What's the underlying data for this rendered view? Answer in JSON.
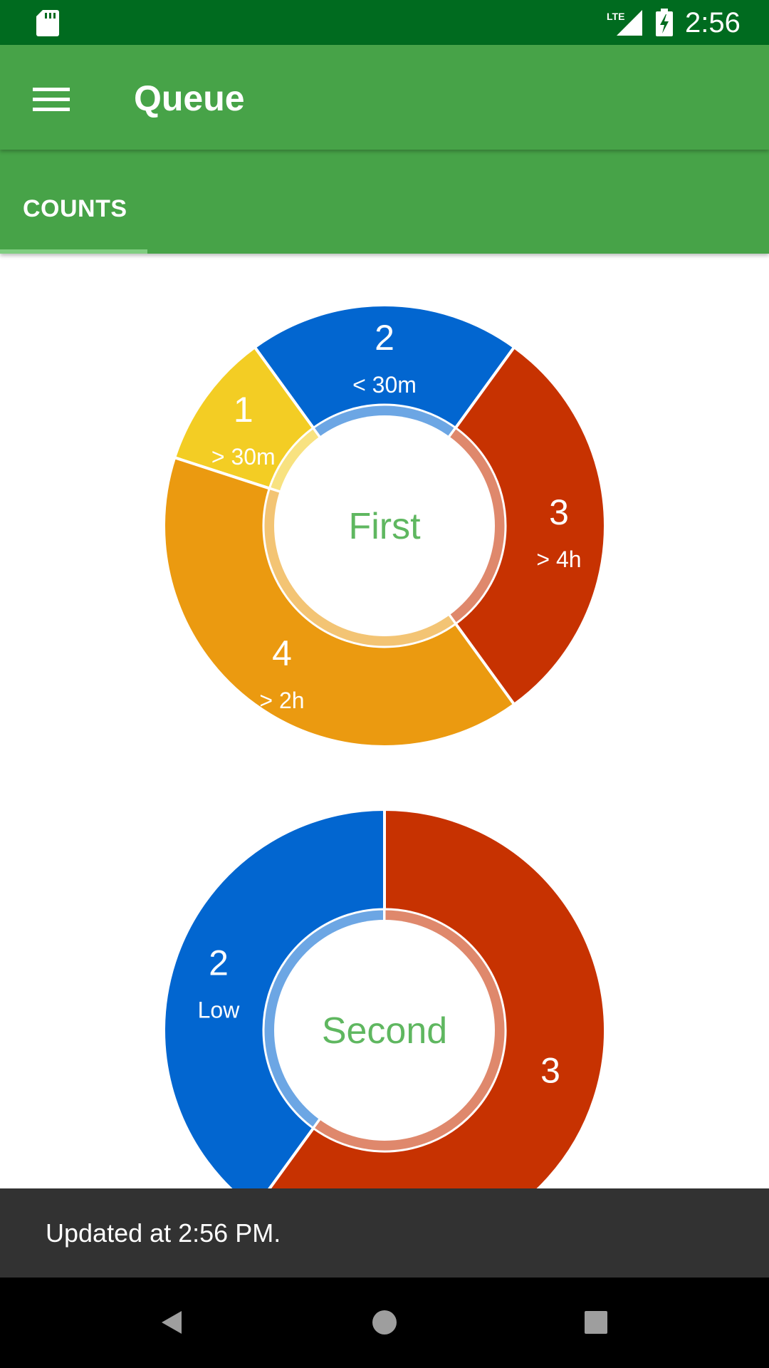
{
  "status_bar": {
    "time": "2:56",
    "network_label": "LTE"
  },
  "app_bar": {
    "title": "Queue"
  },
  "tabs": [
    {
      "label": "COUNTS",
      "selected": true
    }
  ],
  "colors": {
    "status_bar": "#006b1f",
    "app_bar": "#47a348",
    "center_text": "#5fb760",
    "yellow": "#f3cd24",
    "blue": "#0266d0",
    "red": "#c73201",
    "orange": "#eb9a10"
  },
  "chart_data": [
    {
      "type": "pie",
      "center_label": "First",
      "slices": [
        {
          "value": 1,
          "label": "> 30m",
          "color": "#f3cd24"
        },
        {
          "value": 2,
          "label": "< 30m",
          "color": "#0266d0"
        },
        {
          "value": 3,
          "label": "> 4h",
          "color": "#c73201"
        },
        {
          "value": 4,
          "label": "> 2h",
          "color": "#eb9a10"
        }
      ]
    },
    {
      "type": "pie",
      "center_label": "Second",
      "slices": [
        {
          "value": 2,
          "label": "Low",
          "color": "#0266d0"
        },
        {
          "value": 3,
          "label": "",
          "color": "#c73201"
        }
      ]
    }
  ],
  "snackbar": {
    "message": "Updated at 2:56 PM."
  }
}
